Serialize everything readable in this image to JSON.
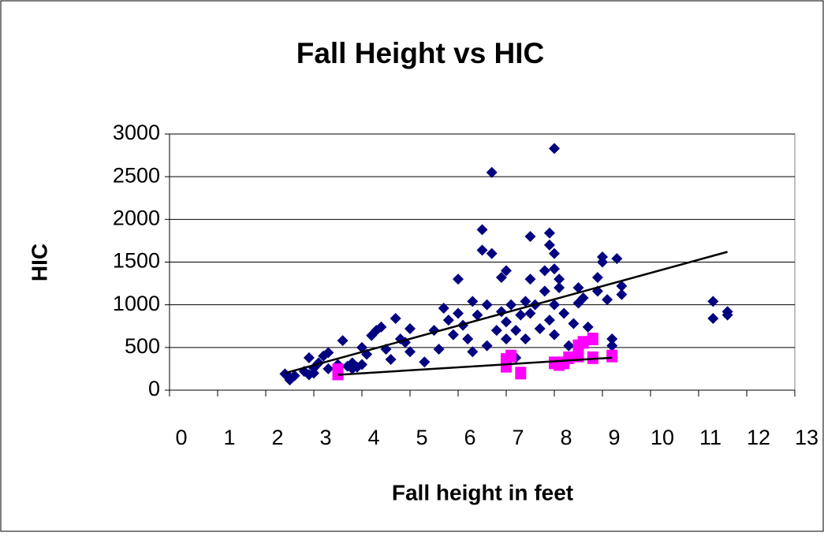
{
  "chart_data": {
    "type": "scatter",
    "title": "Fall Height vs HIC",
    "x_label": "Fall height in feet",
    "y_label": "HIC",
    "xlim": [
      0,
      13
    ],
    "xticks": [
      0,
      1,
      2,
      3,
      4,
      5,
      6,
      7,
      8,
      9,
      10,
      11,
      12,
      13
    ],
    "ylim": [
      0,
      3000
    ],
    "yticks": [
      0,
      500,
      1000,
      1500,
      2000,
      2500,
      3000
    ],
    "grid": true,
    "series": [
      {
        "color": "#000080",
        "marker": "diamond",
        "x": [
          2.4,
          2.5,
          2.5,
          2.6,
          2.8,
          2.9,
          2.9,
          3.0,
          3.0,
          3.1,
          3.2,
          3.3,
          3.3,
          3.5,
          3.6,
          3.7,
          3.8,
          3.8,
          3.9,
          4.0,
          4.0,
          4.1,
          4.2,
          4.3,
          4.4,
          4.5,
          4.6,
          4.7,
          4.8,
          4.9,
          5.0,
          5.0,
          5.3,
          5.5,
          5.6,
          5.7,
          5.8,
          5.9,
          6.0,
          6.0,
          6.1,
          6.2,
          6.3,
          6.3,
          6.4,
          6.5,
          6.5,
          6.6,
          6.6,
          6.7,
          6.7,
          6.8,
          6.9,
          6.9,
          7.0,
          7.0,
          7.0,
          7.1,
          7.2,
          7.2,
          7.3,
          7.4,
          7.4,
          7.5,
          7.5,
          7.5,
          7.6,
          7.7,
          7.8,
          7.8,
          7.9,
          7.9,
          7.9,
          8.0,
          8.0,
          8.0,
          8.0,
          8.0,
          8.1,
          8.1,
          8.2,
          8.3,
          8.4,
          8.5,
          8.5,
          8.6,
          8.7,
          8.9,
          8.9,
          9.0,
          9.0,
          9.1,
          9.2,
          9.2,
          9.3,
          9.4,
          9.4,
          11.3,
          11.3,
          11.6,
          11.6
        ],
        "values": [
          190,
          150,
          120,
          170,
          220,
          180,
          380,
          260,
          200,
          320,
          400,
          440,
          250,
          300,
          580,
          280,
          320,
          250,
          270,
          500,
          300,
          420,
          640,
          700,
          740,
          480,
          360,
          840,
          600,
          560,
          720,
          450,
          330,
          700,
          480,
          960,
          820,
          650,
          1300,
          900,
          760,
          600,
          1040,
          450,
          880,
          1880,
          1640,
          1000,
          520,
          2550,
          1600,
          700,
          1320,
          920,
          1400,
          800,
          600,
          1000,
          700,
          380,
          880,
          1040,
          600,
          1800,
          1300,
          900,
          1000,
          720,
          1400,
          1160,
          1840,
          1700,
          820,
          2830,
          1600,
          1420,
          1000,
          650,
          1300,
          1200,
          900,
          520,
          780,
          1200,
          1020,
          1080,
          740,
          1160,
          1320,
          1560,
          1500,
          1060,
          600,
          520,
          1540,
          1120,
          1220,
          1040,
          840,
          880,
          920
        ]
      },
      {
        "color": "#ff00ff",
        "marker": "square",
        "x": [
          3.5,
          3.5,
          7.0,
          7.0,
          7.1,
          7.3,
          8.0,
          8.1,
          8.2,
          8.3,
          8.5,
          8.5,
          8.6,
          8.8,
          8.8,
          9.2
        ],
        "values": [
          240,
          190,
          280,
          360,
          400,
          200,
          320,
          300,
          320,
          380,
          400,
          520,
          560,
          600,
          380,
          400
        ]
      }
    ],
    "trendlines": [
      {
        "color": "#000000",
        "x": [
          2.4,
          11.6
        ],
        "values": [
          200,
          1620
        ]
      },
      {
        "color": "#000000",
        "x": [
          3.5,
          9.2
        ],
        "values": [
          180,
          380
        ]
      }
    ]
  }
}
